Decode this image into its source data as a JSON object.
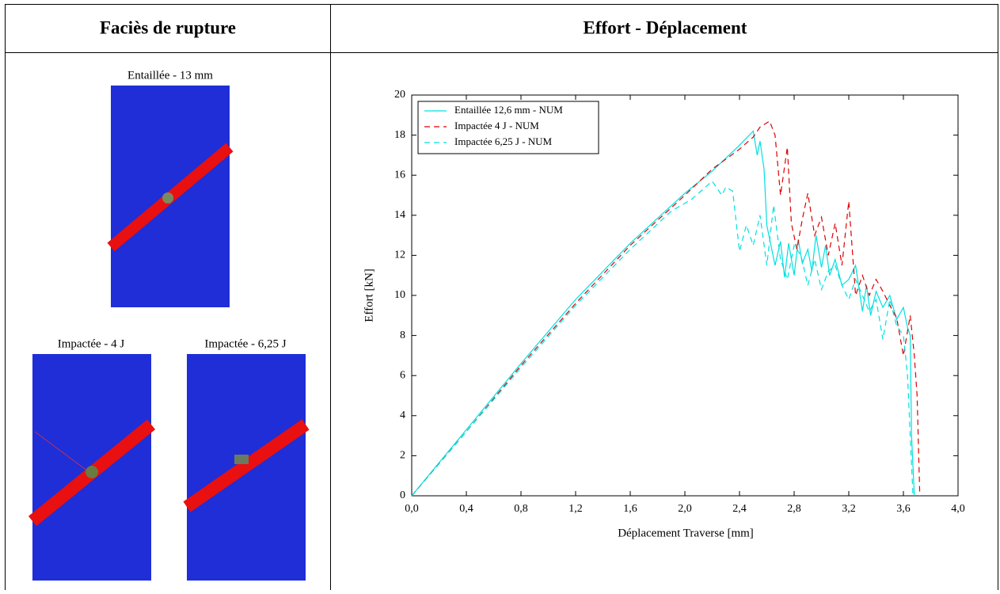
{
  "table": {
    "header": [
      "Faciès de rupture",
      "Effort - Déplacement"
    ],
    "images": [
      {
        "caption": "Entaillée - 13 mm"
      },
      {
        "caption": "Impactée -  4 J"
      },
      {
        "caption": "Impactée -  6,25 J"
      }
    ]
  },
  "chart_data": {
    "type": "line",
    "xlabel": "Déplacement Traverse [mm]",
    "ylabel": "Effort [kN]",
    "xlim": [
      0,
      4
    ],
    "ylim": [
      0,
      20
    ],
    "xticks": [
      {
        "value": 0,
        "label": "0,0"
      },
      {
        "value": 0.4,
        "label": "0,4"
      },
      {
        "value": 0.8,
        "label": "0,8"
      },
      {
        "value": 1.2,
        "label": "1,2"
      },
      {
        "value": 1.6,
        "label": "1,6"
      },
      {
        "value": 2.0,
        "label": "2,0"
      },
      {
        "value": 2.4,
        "label": "2,4"
      },
      {
        "value": 2.8,
        "label": "2,8"
      },
      {
        "value": 3.2,
        "label": "3,2"
      },
      {
        "value": 3.6,
        "label": "3,6"
      },
      {
        "value": 4.0,
        "label": "4,0"
      }
    ],
    "yticks": [
      0,
      2,
      4,
      6,
      8,
      10,
      12,
      14,
      16,
      18,
      20
    ],
    "legend": "upper left",
    "series": [
      {
        "name": "Entaillée 12,6 mm - NUM",
        "color": "#00e0e0",
        "dash": false,
        "x": [
          0,
          0.4,
          0.8,
          1.2,
          1.6,
          2.0,
          2.2,
          2.4,
          2.5,
          2.53,
          2.55,
          2.58,
          2.6,
          2.63,
          2.66,
          2.7,
          2.73,
          2.76,
          2.8,
          2.83,
          2.86,
          2.9,
          2.93,
          2.96,
          3.0,
          3.03,
          3.06,
          3.1,
          3.15,
          3.2,
          3.25,
          3.3,
          3.33,
          3.36,
          3.4,
          3.45,
          3.5,
          3.55,
          3.6,
          3.63,
          3.65,
          3.66,
          3.68
        ],
        "values": [
          0,
          3.3,
          6.6,
          9.8,
          12.6,
          15.1,
          16.2,
          17.5,
          18.2,
          17.0,
          17.7,
          16.3,
          13.5,
          12.5,
          11.5,
          12.7,
          10.9,
          12.6,
          11.0,
          12.8,
          11.6,
          12.3,
          11.2,
          13.0,
          11.4,
          12.5,
          11.0,
          11.8,
          10.5,
          10.8,
          11.5,
          9.2,
          10.5,
          9.0,
          10.2,
          9.4,
          10.0,
          8.8,
          9.4,
          8.4,
          8.0,
          3.0,
          0
        ]
      },
      {
        "name": "Impactée 4 J - NUM",
        "color": "#dd0000",
        "dash": true,
        "x": [
          0,
          0.4,
          0.8,
          1.2,
          1.6,
          2.0,
          2.2,
          2.4,
          2.5,
          2.55,
          2.62,
          2.66,
          2.7,
          2.75,
          2.78,
          2.82,
          2.86,
          2.9,
          2.95,
          3.0,
          3.05,
          3.1,
          3.15,
          3.2,
          3.25,
          3.3,
          3.35,
          3.4,
          3.45,
          3.5,
          3.55,
          3.6,
          3.65,
          3.68,
          3.7,
          3.72
        ],
        "values": [
          0,
          3.2,
          6.5,
          9.6,
          12.5,
          15.0,
          16.3,
          17.3,
          17.9,
          18.4,
          18.7,
          18.0,
          15.0,
          17.4,
          13.6,
          12.3,
          13.8,
          15.1,
          13.0,
          13.9,
          12.0,
          13.6,
          11.5,
          14.7,
          10.0,
          11.0,
          10.0,
          10.8,
          10.2,
          9.5,
          8.9,
          7.0,
          9.0,
          7.0,
          5.0,
          0
        ]
      },
      {
        "name": "Impactée 6,25 J - NUM",
        "color": "#00e0e0",
        "dash": true,
        "x": [
          0,
          0.4,
          0.8,
          1.2,
          1.6,
          1.9,
          2.05,
          2.2,
          2.27,
          2.3,
          2.35,
          2.4,
          2.45,
          2.5,
          2.55,
          2.6,
          2.65,
          2.7,
          2.75,
          2.8,
          2.85,
          2.9,
          2.95,
          3.0,
          3.05,
          3.1,
          3.15,
          3.2,
          3.25,
          3.3,
          3.35,
          3.4,
          3.45,
          3.5,
          3.55,
          3.6,
          3.63,
          3.65,
          3.67
        ],
        "values": [
          0,
          3.2,
          6.4,
          9.5,
          12.3,
          14.2,
          14.8,
          15.7,
          15.0,
          15.4,
          15.2,
          12.2,
          13.5,
          12.5,
          14.0,
          11.5,
          14.5,
          11.8,
          10.8,
          12.5,
          12.0,
          10.5,
          11.8,
          10.3,
          11.2,
          11.5,
          10.5,
          9.8,
          10.8,
          10.0,
          9.2,
          9.8,
          7.8,
          9.8,
          8.5,
          8.0,
          6.0,
          3.0,
          0
        ]
      }
    ]
  }
}
